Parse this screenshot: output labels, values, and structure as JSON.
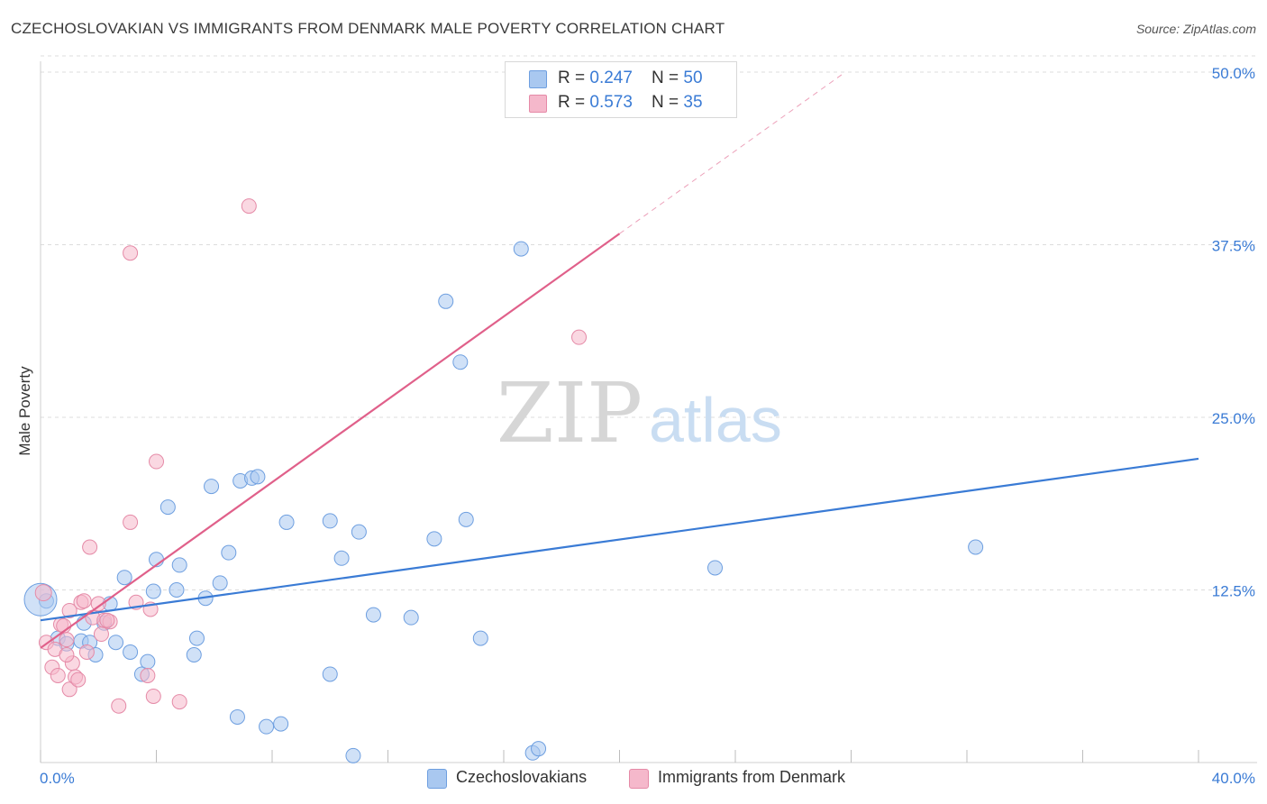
{
  "title": "CZECHOSLOVAKIAN VS IMMIGRANTS FROM DENMARK MALE POVERTY CORRELATION CHART",
  "source": "Source: ZipAtlas.com",
  "watermark": {
    "zip": "ZIP",
    "atlas": "atlas"
  },
  "legend_top": [
    {
      "r_label": "R = ",
      "r_value": "0.247",
      "n_label": "N = ",
      "n_value": "50",
      "color": "#a9c8f0"
    },
    {
      "r_label": "R = ",
      "r_value": "0.573",
      "n_label": "N = ",
      "n_value": "35",
      "color": "#f5b8cb"
    }
  ],
  "legend_bottom": [
    {
      "label": "Czechoslovakians",
      "color": "#a9c8f0"
    },
    {
      "label": "Immigrants from Denmark",
      "color": "#f5b8cb"
    }
  ],
  "chart_data": {
    "type": "scatter",
    "title": "CZECHOSLOVAKIAN VS IMMIGRANTS FROM DENMARK MALE POVERTY CORRELATION CHART",
    "xlabel": "",
    "ylabel": "Male Poverty",
    "xlim": [
      0,
      40
    ],
    "ylim": [
      0,
      50
    ],
    "x_tick_labels": [
      "0.0%",
      "40.0%"
    ],
    "y_ticks": [
      12.5,
      25.0,
      37.5,
      50.0
    ],
    "y_tick_labels": [
      "12.5%",
      "25.0%",
      "37.5%",
      "50.0%"
    ],
    "grid": true,
    "series": [
      {
        "name": "Czechoslovakians",
        "color": "#3a7bd5",
        "fill": "#a9c8f0",
        "r": 0.247,
        "n": 50,
        "trend": {
          "x0": 0,
          "y0": 10.3,
          "x1": 40,
          "y1": 22.0
        },
        "points": [
          [
            0.2,
            11.7
          ],
          [
            0.6,
            9.0
          ],
          [
            0.9,
            8.6
          ],
          [
            1.4,
            8.8
          ],
          [
            1.5,
            10.1
          ],
          [
            1.7,
            8.7
          ],
          [
            1.9,
            7.8
          ],
          [
            2.2,
            10.1
          ],
          [
            2.4,
            11.5
          ],
          [
            2.6,
            8.7
          ],
          [
            2.9,
            13.4
          ],
          [
            3.1,
            8.0
          ],
          [
            3.5,
            6.4
          ],
          [
            3.7,
            7.3
          ],
          [
            3.9,
            12.4
          ],
          [
            4.0,
            14.7
          ],
          [
            4.4,
            18.5
          ],
          [
            4.7,
            12.5
          ],
          [
            4.8,
            14.3
          ],
          [
            5.3,
            7.8
          ],
          [
            5.4,
            9.0
          ],
          [
            5.7,
            11.9
          ],
          [
            5.9,
            20.0
          ],
          [
            6.2,
            13.0
          ],
          [
            6.5,
            15.2
          ],
          [
            6.8,
            3.3
          ],
          [
            6.9,
            20.4
          ],
          [
            7.3,
            20.6
          ],
          [
            7.5,
            20.7
          ],
          [
            7.8,
            2.6
          ],
          [
            8.3,
            2.8
          ],
          [
            8.5,
            17.4
          ],
          [
            10.0,
            17.5
          ],
          [
            10.0,
            6.4
          ],
          [
            10.4,
            14.8
          ],
          [
            10.8,
            0.5
          ],
          [
            11.0,
            16.7
          ],
          [
            11.5,
            10.7
          ],
          [
            12.8,
            10.5
          ],
          [
            13.6,
            16.2
          ],
          [
            14.0,
            33.4
          ],
          [
            14.5,
            29.0
          ],
          [
            14.7,
            17.6
          ],
          [
            15.2,
            9.0
          ],
          [
            16.6,
            37.2
          ],
          [
            17.0,
            0.7
          ],
          [
            17.2,
            1.0
          ],
          [
            23.3,
            14.1
          ],
          [
            32.3,
            15.6
          ],
          [
            0.0,
            11.8
          ]
        ]
      },
      {
        "name": "Immigrants from Denmark",
        "color": "#e0608a",
        "fill": "#f5b8cb",
        "r": 0.573,
        "n": 35,
        "trend": {
          "x0": 0,
          "y0": 8.3,
          "x1": 20,
          "y1": 38.3
        },
        "trend_extension": {
          "x0": 20,
          "y0": 38.3,
          "x1": 27.8,
          "y1": 50.0
        },
        "points": [
          [
            0.1,
            12.3
          ],
          [
            0.2,
            8.7
          ],
          [
            0.4,
            6.9
          ],
          [
            0.5,
            8.2
          ],
          [
            0.6,
            6.3
          ],
          [
            0.7,
            10.0
          ],
          [
            0.8,
            9.9
          ],
          [
            0.9,
            8.9
          ],
          [
            1.0,
            11.0
          ],
          [
            1.0,
            5.3
          ],
          [
            1.1,
            7.2
          ],
          [
            1.2,
            6.2
          ],
          [
            1.3,
            6.0
          ],
          [
            1.4,
            11.6
          ],
          [
            1.5,
            11.7
          ],
          [
            1.6,
            8.0
          ],
          [
            1.7,
            15.6
          ],
          [
            1.8,
            10.5
          ],
          [
            2.0,
            11.5
          ],
          [
            2.1,
            9.3
          ],
          [
            2.2,
            10.3
          ],
          [
            2.4,
            10.2
          ],
          [
            2.7,
            4.1
          ],
          [
            3.1,
            36.9
          ],
          [
            3.1,
            17.4
          ],
          [
            3.3,
            11.6
          ],
          [
            3.7,
            6.3
          ],
          [
            3.8,
            11.1
          ],
          [
            3.9,
            4.8
          ],
          [
            4.0,
            21.8
          ],
          [
            4.8,
            4.4
          ],
          [
            7.2,
            40.3
          ],
          [
            18.6,
            30.8
          ],
          [
            2.3,
            10.3
          ],
          [
            0.9,
            7.8
          ]
        ]
      }
    ]
  }
}
